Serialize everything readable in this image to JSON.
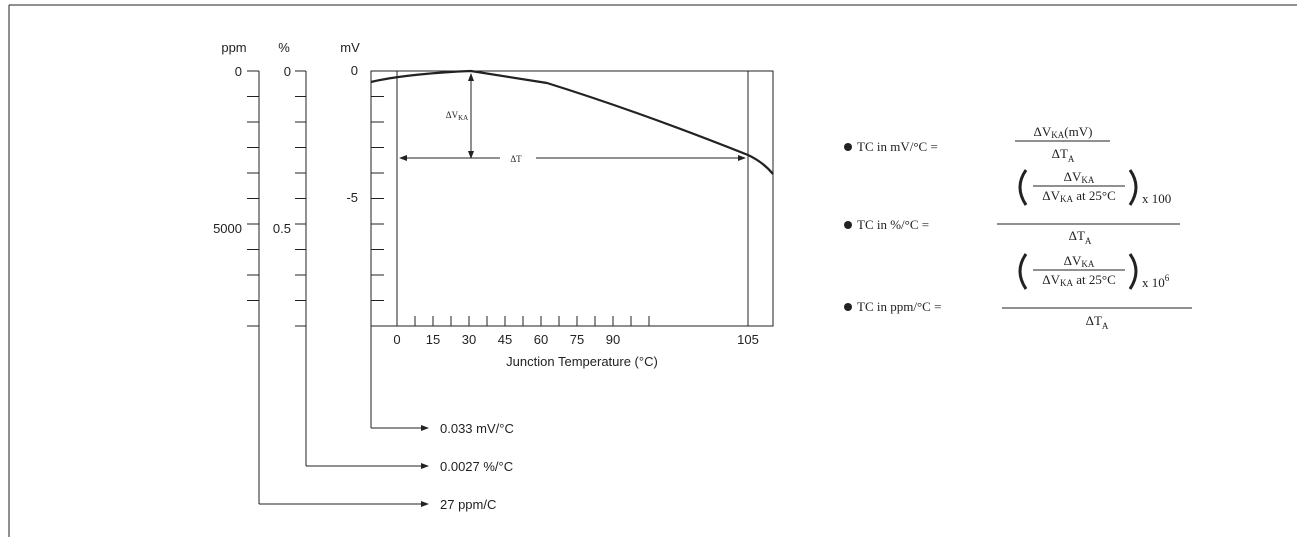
{
  "axis_units": {
    "ppm": "ppm",
    "percent": "%",
    "mv": "mV"
  },
  "ppm_ticks": [
    "0",
    "5000"
  ],
  "percent_ticks": [
    "0",
    "0.5"
  ],
  "mv_ticks": [
    "0",
    "-5"
  ],
  "x_ticks": [
    "0",
    "15",
    "30",
    "45",
    "60",
    "75",
    "90",
    "105"
  ],
  "x_label": "Junction Temperature (°C)",
  "delta_v": {
    "symbol": "ΔV",
    "sub": "KA"
  },
  "delta_t": "ΔT",
  "results": {
    "mv": "0.033 mV/°C",
    "percent": "0.0027 %/°C",
    "ppm": "27 ppm/C"
  },
  "formulas": [
    {
      "lhs": "TC in mV/°C =",
      "num": "ΔV",
      "num_sub": "KA",
      "num_tail": "(mV)",
      "den": "ΔT",
      "den_sub": "A"
    },
    {
      "lhs": "TC in  %/°C =",
      "inner_num": "ΔV",
      "inner_num_sub": "KA",
      "inner_den": "ΔV",
      "inner_den_sub": "KA",
      "inner_den_tail": " at 25°C",
      "factor": "x  100",
      "den": "ΔT",
      "den_sub": "A"
    },
    {
      "lhs": "TC in ppm/°C  =",
      "inner_num": "ΔV",
      "inner_num_sub": "KA",
      "inner_den": "ΔV",
      "inner_den_sub": "KA",
      "inner_den_tail": " at 25°C",
      "factor": "x  10",
      "factor_sup": "6",
      "den": "ΔT",
      "den_sub": "A"
    }
  ]
}
